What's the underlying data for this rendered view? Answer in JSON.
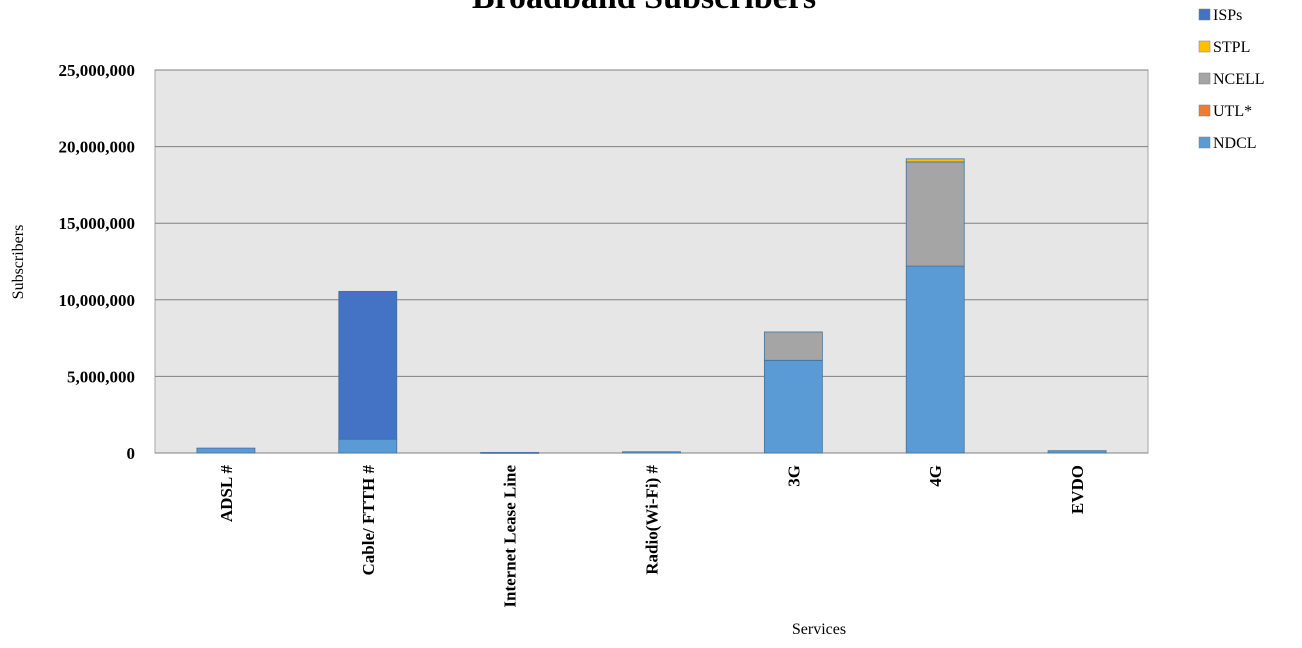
{
  "chart_data": {
    "type": "bar",
    "stacked": true,
    "title": "Broadband Subscribers",
    "xlabel": "Services",
    "ylabel": "Subscribers",
    "ylim": [
      0,
      25000000
    ],
    "yticks": [
      0,
      5000000,
      10000000,
      15000000,
      20000000,
      25000000
    ],
    "ytick_labels": [
      "0",
      "5,000,000",
      "10,000,000",
      "15,000,000",
      "20,000,000",
      "25,000,000"
    ],
    "categories": [
      "ADSL #",
      "Cable/ FTTH #",
      "Internet Lease Line",
      "Radio(Wi-Fi) #",
      "3G",
      "4G",
      "EVDO"
    ],
    "grid": true,
    "plot_background": "#e7e6e6",
    "legend_position": "top-right",
    "series": [
      {
        "name": "NDCL",
        "color": "#5b9bd5",
        "values": [
          320000,
          900000,
          40000,
          80000,
          6050000,
          12200000,
          150000
        ]
      },
      {
        "name": "UTL*",
        "color": "#ed7d31",
        "values": [
          0,
          0,
          0,
          0,
          0,
          0,
          0
        ]
      },
      {
        "name": "NCELL",
        "color": "#a5a5a5",
        "values": [
          0,
          0,
          0,
          0,
          1850000,
          6800000,
          0
        ]
      },
      {
        "name": "STPL",
        "color": "#ffc000",
        "values": [
          0,
          0,
          0,
          0,
          0,
          200000,
          0
        ]
      },
      {
        "name": "ISPs",
        "color": "#4472c4",
        "values": [
          0,
          9650000,
          0,
          0,
          0,
          0,
          0
        ]
      }
    ],
    "legend_order": [
      "ISPs",
      "STPL",
      "NCELL",
      "UTL*",
      "NDCL"
    ]
  }
}
